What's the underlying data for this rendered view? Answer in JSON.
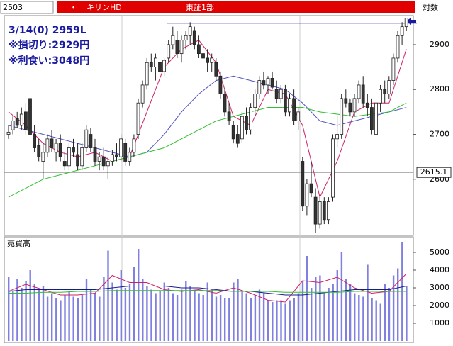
{
  "chart_data": {
    "type": "candlestick",
    "header": {
      "code": "2503",
      "dot": "・",
      "name": "キリンHD",
      "market": "東証1部",
      "scale": "対数"
    },
    "annotations": [
      "3/14(0) 2959L",
      "※損切り:2929円",
      "※利食い:3048円"
    ],
    "ylim": [
      2478,
      2960
    ],
    "yticks": [
      2600,
      2700,
      2800,
      2900
    ],
    "up_color": "#ffffff",
    "down_color": "#333333",
    "candles": [
      [
        2700,
        2720,
        2690,
        2705
      ],
      [
        2710,
        2740,
        2700,
        2730
      ],
      [
        2735,
        2750,
        2715,
        2720
      ],
      [
        2720,
        2760,
        2710,
        2745
      ],
      [
        2750,
        2770,
        2700,
        2710
      ],
      [
        2780,
        2800,
        2690,
        2700
      ],
      [
        2700,
        2720,
        2660,
        2670
      ],
      [
        2675,
        2690,
        2640,
        2650
      ],
      [
        2640,
        2680,
        2600,
        2660
      ],
      [
        2660,
        2700,
        2650,
        2690
      ],
      [
        2690,
        2710,
        2660,
        2670
      ],
      [
        2660,
        2690,
        2640,
        2680
      ],
      [
        2680,
        2700,
        2640,
        2650
      ],
      [
        2640,
        2660,
        2620,
        2630
      ],
      [
        2630,
        2680,
        2620,
        2670
      ],
      [
        2670,
        2690,
        2650,
        2660
      ],
      [
        2655,
        2680,
        2620,
        2630
      ],
      [
        2630,
        2680,
        2620,
        2670
      ],
      [
        2670,
        2720,
        2660,
        2710
      ],
      [
        2700,
        2715,
        2660,
        2670
      ],
      [
        2670,
        2690,
        2630,
        2640
      ],
      [
        2640,
        2660,
        2620,
        2650
      ],
      [
        2650,
        2670,
        2620,
        2630
      ],
      [
        2630,
        2650,
        2600,
        2640
      ],
      [
        2640,
        2665,
        2630,
        2655
      ],
      [
        2655,
        2680,
        2640,
        2650
      ],
      [
        2650,
        2700,
        2640,
        2690
      ],
      [
        2680,
        2690,
        2630,
        2640
      ],
      [
        2640,
        2670,
        2630,
        2660
      ],
      [
        2660,
        2700,
        2650,
        2690
      ],
      [
        2700,
        2780,
        2690,
        2770
      ],
      [
        2770,
        2820,
        2760,
        2810
      ],
      [
        2810,
        2870,
        2800,
        2860
      ],
      [
        2860,
        2880,
        2840,
        2850
      ],
      [
        2850,
        2880,
        2820,
        2870
      ],
      [
        2860,
        2880,
        2830,
        2840
      ],
      [
        2840,
        2870,
        2830,
        2865
      ],
      [
        2870,
        2910,
        2860,
        2900
      ],
      [
        2900,
        2940,
        2890,
        2920
      ],
      [
        2910,
        2930,
        2870,
        2880
      ],
      [
        2880,
        2920,
        2860,
        2910
      ],
      [
        2910,
        2930,
        2890,
        2920
      ],
      [
        2920,
        2950,
        2900,
        2940
      ],
      [
        2930,
        2940,
        2890,
        2900
      ],
      [
        2900,
        2920,
        2870,
        2880
      ],
      [
        2880,
        2900,
        2860,
        2870
      ],
      [
        2870,
        2890,
        2840,
        2860
      ],
      [
        2860,
        2880,
        2840,
        2870
      ],
      [
        2860,
        2870,
        2820,
        2830
      ],
      [
        2830,
        2840,
        2780,
        2790
      ],
      [
        2790,
        2800,
        2740,
        2750
      ],
      [
        2750,
        2770,
        2720,
        2730
      ],
      [
        2720,
        2730,
        2680,
        2690
      ],
      [
        2700,
        2720,
        2670,
        2680
      ],
      [
        2690,
        2750,
        2680,
        2740
      ],
      [
        2740,
        2760,
        2700,
        2710
      ],
      [
        2710,
        2770,
        2700,
        2760
      ],
      [
        2760,
        2800,
        2740,
        2790
      ],
      [
        2790,
        2830,
        2780,
        2820
      ],
      [
        2820,
        2840,
        2800,
        2810
      ],
      [
        2810,
        2830,
        2790,
        2825
      ],
      [
        2825,
        2840,
        2800,
        2805
      ],
      [
        2800,
        2820,
        2770,
        2780
      ],
      [
        2780,
        2810,
        2770,
        2800
      ],
      [
        2800,
        2810,
        2740,
        2750
      ],
      [
        2750,
        2790,
        2740,
        2780
      ],
      [
        2780,
        2800,
        2720,
        2730
      ],
      [
        2730,
        2760,
        2710,
        2750
      ],
      [
        2640,
        2650,
        2530,
        2540
      ],
      [
        2540,
        2600,
        2520,
        2590
      ],
      [
        2590,
        2640,
        2560,
        2570
      ],
      [
        2560,
        2580,
        2480,
        2500
      ],
      [
        2500,
        2560,
        2490,
        2550
      ],
      [
        2550,
        2560,
        2500,
        2510
      ],
      [
        2510,
        2560,
        2500,
        2550
      ],
      [
        2560,
        2700,
        2550,
        2690
      ],
      [
        2690,
        2740,
        2670,
        2700
      ],
      [
        2700,
        2790,
        2690,
        2780
      ],
      [
        2780,
        2800,
        2760,
        2770
      ],
      [
        2770,
        2780,
        2740,
        2750
      ],
      [
        2750,
        2790,
        2740,
        2780
      ],
      [
        2780,
        2820,
        2770,
        2810
      ],
      [
        2810,
        2830,
        2760,
        2770
      ],
      [
        2770,
        2790,
        2740,
        2760
      ],
      [
        2760,
        2780,
        2700,
        2710
      ],
      [
        2700,
        2780,
        2690,
        2770
      ],
      [
        2770,
        2810,
        2750,
        2800
      ],
      [
        2800,
        2820,
        2770,
        2790
      ],
      [
        2790,
        2830,
        2780,
        2820
      ],
      [
        2820,
        2880,
        2810,
        2870
      ],
      [
        2870,
        2930,
        2860,
        2920
      ],
      [
        2920,
        2950,
        2900,
        2940
      ],
      [
        2940,
        2960,
        2930,
        2959
      ]
    ],
    "ma": [
      {
        "color": "#d0206a",
        "x": [
          0,
          4,
          8,
          12,
          16,
          20,
          24,
          28,
          32,
          36,
          40,
          44,
          48,
          52,
          56,
          60,
          64,
          68,
          72,
          76,
          80,
          84,
          88,
          92
        ],
        "values": [
          2750,
          2720,
          2680,
          2660,
          2650,
          2660,
          2640,
          2650,
          2750,
          2850,
          2890,
          2910,
          2860,
          2740,
          2720,
          2800,
          2790,
          2720,
          2560,
          2640,
          2750,
          2770,
          2770,
          2890
        ]
      },
      {
        "color": "#5050c8",
        "x": [
          0,
          4,
          8,
          12,
          16,
          20,
          24,
          28,
          32,
          36,
          40,
          44,
          48,
          52,
          56,
          60,
          64,
          68,
          72,
          76,
          80,
          84,
          88,
          92
        ],
        "values": [
          2720,
          2710,
          2700,
          2690,
          2680,
          2670,
          2660,
          2650,
          2660,
          2700,
          2750,
          2790,
          2820,
          2830,
          2820,
          2810,
          2800,
          2770,
          2730,
          2720,
          2730,
          2740,
          2750,
          2760
        ]
      },
      {
        "color": "#30c030",
        "x": [
          0,
          4,
          8,
          12,
          16,
          20,
          24,
          28,
          32,
          36,
          40,
          44,
          48,
          52,
          56,
          60,
          64,
          68,
          72,
          76,
          80,
          84,
          88,
          92
        ],
        "values": [
          2560,
          2580,
          2600,
          2610,
          2620,
          2630,
          2640,
          2650,
          2660,
          2670,
          2690,
          2710,
          2730,
          2740,
          2750,
          2760,
          2760,
          2760,
          2750,
          2745,
          2740,
          2745,
          2750,
          2770
        ]
      }
    ],
    "reference_line": {
      "value": 2615.1,
      "color": "#999999"
    },
    "target_line": {
      "value": 2948,
      "color": "#1a1aa0"
    },
    "volume": {
      "label": "売買高",
      "color": "#8080e0",
      "ylim": [
        0,
        5840
      ],
      "yticks": [
        1000,
        2000,
        3000,
        4000,
        5000
      ],
      "values": [
        3600,
        2800,
        3500,
        3000,
        3400,
        4000,
        3200,
        2900,
        3100,
        2500,
        2700,
        2400,
        2300,
        2600,
        2800,
        2500,
        2400,
        2600,
        3500,
        2900,
        2700,
        2500,
        3600,
        5100,
        3300,
        2900,
        4000,
        3000,
        3200,
        4200,
        5200,
        3500,
        3100,
        2900,
        2700,
        2800,
        3300,
        3000,
        2700,
        2600,
        2900,
        3400,
        3100,
        2800,
        2700,
        2600,
        3300,
        2900,
        2500,
        2600,
        2400,
        2400,
        3300,
        3500,
        2800,
        2700,
        2400,
        2600,
        2900,
        2700,
        2300,
        2200,
        2300,
        2300,
        2100,
        2300,
        2400,
        2700,
        3400,
        4800,
        3000,
        3600,
        3700,
        2700,
        3000,
        3200,
        4000,
        5000,
        3500,
        3200,
        2700,
        2600,
        2500,
        4300,
        2400,
        2300,
        2100,
        3200,
        3000,
        3700,
        4100,
        5600,
        3100
      ],
      "ma": [
        {
          "color": "#d0206a",
          "x": [
            0,
            4,
            8,
            12,
            16,
            20,
            24,
            28,
            32,
            36,
            40,
            44,
            48,
            52,
            56,
            60,
            64,
            68,
            72,
            76,
            80,
            84,
            88,
            92
          ],
          "values": [
            2800,
            3200,
            2900,
            2600,
            2600,
            2700,
            3700,
            3300,
            3300,
            2900,
            2800,
            2900,
            2700,
            3000,
            2700,
            2300,
            2200,
            3400,
            3300,
            3600,
            3000,
            2700,
            2800,
            3800
          ]
        },
        {
          "color": "#1a1a90",
          "x": [
            0,
            4,
            8,
            12,
            16,
            20,
            24,
            28,
            32,
            36,
            40,
            44,
            48,
            52,
            56,
            60,
            64,
            68,
            72,
            76,
            80,
            84,
            88,
            92
          ],
          "values": [
            2800,
            2900,
            2900,
            2900,
            2900,
            2900,
            3000,
            3100,
            3100,
            3100,
            3000,
            3000,
            2900,
            2800,
            2800,
            2700,
            2600,
            2600,
            2700,
            2800,
            2900,
            2900,
            2900,
            3100
          ]
        },
        {
          "color": "#30c030",
          "x": [
            0,
            4,
            8,
            12,
            16,
            20,
            24,
            28,
            32,
            36,
            40,
            44,
            48,
            52,
            56,
            60,
            64,
            68,
            72,
            76,
            80,
            84,
            88,
            92
          ],
          "values": [
            2700,
            2700,
            2750,
            2750,
            2800,
            2800,
            2850,
            2850,
            2850,
            2850,
            2850,
            2850,
            2850,
            2800,
            2800,
            2800,
            2750,
            2750,
            2750,
            2750,
            2800,
            2800,
            2800,
            2800
          ]
        }
      ]
    }
  }
}
